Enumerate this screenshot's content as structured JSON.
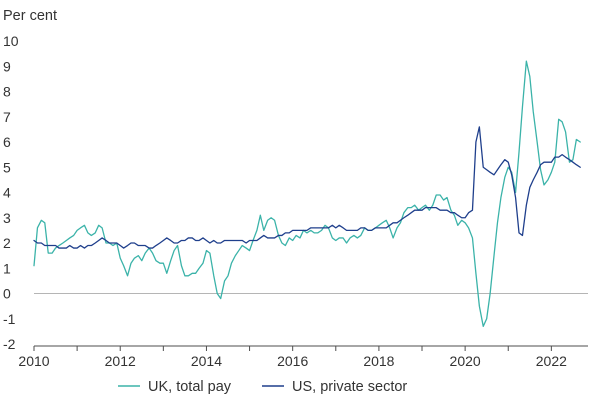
{
  "chart_data": {
    "type": "line",
    "title": "",
    "ylabel": "Per cent",
    "xlabel": "",
    "xlim": [
      2010,
      2022.85
    ],
    "ylim": [
      -2,
      10
    ],
    "x_ticks": [
      2010,
      2012,
      2014,
      2016,
      2018,
      2020,
      2022
    ],
    "y_ticks": [
      -2,
      -1,
      0,
      1,
      2,
      3,
      4,
      5,
      6,
      7,
      8,
      9,
      10
    ],
    "grid": false,
    "legend_position": "bottom",
    "series": [
      {
        "name": "UK, total pay",
        "color": "#3bb3a9",
        "points": [
          [
            2010.0,
            1.1
          ],
          [
            2010.08,
            2.6
          ],
          [
            2010.17,
            2.9
          ],
          [
            2010.25,
            2.8
          ],
          [
            2010.33,
            1.6
          ],
          [
            2010.42,
            1.6
          ],
          [
            2010.5,
            1.8
          ],
          [
            2010.58,
            1.9
          ],
          [
            2010.67,
            2.0
          ],
          [
            2010.75,
            2.1
          ],
          [
            2010.83,
            2.2
          ],
          [
            2010.92,
            2.3
          ],
          [
            2011.0,
            2.5
          ],
          [
            2011.08,
            2.6
          ],
          [
            2011.17,
            2.7
          ],
          [
            2011.25,
            2.4
          ],
          [
            2011.33,
            2.3
          ],
          [
            2011.42,
            2.4
          ],
          [
            2011.5,
            2.7
          ],
          [
            2011.58,
            2.6
          ],
          [
            2011.67,
            2.0
          ],
          [
            2011.75,
            2.0
          ],
          [
            2011.83,
            1.9
          ],
          [
            2011.92,
            2.0
          ],
          [
            2012.0,
            1.4
          ],
          [
            2012.08,
            1.1
          ],
          [
            2012.17,
            0.7
          ],
          [
            2012.25,
            1.2
          ],
          [
            2012.33,
            1.4
          ],
          [
            2012.42,
            1.5
          ],
          [
            2012.5,
            1.3
          ],
          [
            2012.58,
            1.6
          ],
          [
            2012.67,
            1.8
          ],
          [
            2012.75,
            1.6
          ],
          [
            2012.83,
            1.3
          ],
          [
            2012.92,
            1.2
          ],
          [
            2013.0,
            1.2
          ],
          [
            2013.08,
            0.8
          ],
          [
            2013.17,
            1.3
          ],
          [
            2013.25,
            1.7
          ],
          [
            2013.33,
            1.9
          ],
          [
            2013.42,
            1.1
          ],
          [
            2013.5,
            0.7
          ],
          [
            2013.58,
            0.7
          ],
          [
            2013.67,
            0.8
          ],
          [
            2013.75,
            0.8
          ],
          [
            2013.83,
            1.0
          ],
          [
            2013.92,
            1.2
          ],
          [
            2014.0,
            1.7
          ],
          [
            2014.08,
            1.6
          ],
          [
            2014.17,
            0.7
          ],
          [
            2014.25,
            0.0
          ],
          [
            2014.33,
            -0.2
          ],
          [
            2014.42,
            0.5
          ],
          [
            2014.5,
            0.7
          ],
          [
            2014.58,
            1.2
          ],
          [
            2014.67,
            1.5
          ],
          [
            2014.75,
            1.7
          ],
          [
            2014.83,
            1.9
          ],
          [
            2014.92,
            1.8
          ],
          [
            2015.0,
            1.7
          ],
          [
            2015.08,
            2.1
          ],
          [
            2015.17,
            2.5
          ],
          [
            2015.25,
            3.1
          ],
          [
            2015.33,
            2.5
          ],
          [
            2015.42,
            2.9
          ],
          [
            2015.5,
            3.0
          ],
          [
            2015.58,
            2.9
          ],
          [
            2015.67,
            2.3
          ],
          [
            2015.75,
            2.0
          ],
          [
            2015.83,
            1.9
          ],
          [
            2015.92,
            2.2
          ],
          [
            2016.0,
            2.1
          ],
          [
            2016.08,
            2.3
          ],
          [
            2016.17,
            2.2
          ],
          [
            2016.25,
            2.5
          ],
          [
            2016.33,
            2.4
          ],
          [
            2016.42,
            2.5
          ],
          [
            2016.5,
            2.4
          ],
          [
            2016.58,
            2.4
          ],
          [
            2016.67,
            2.5
          ],
          [
            2016.75,
            2.7
          ],
          [
            2016.83,
            2.6
          ],
          [
            2016.92,
            2.2
          ],
          [
            2017.0,
            2.1
          ],
          [
            2017.08,
            2.2
          ],
          [
            2017.17,
            2.2
          ],
          [
            2017.25,
            2.0
          ],
          [
            2017.33,
            2.2
          ],
          [
            2017.42,
            2.3
          ],
          [
            2017.5,
            2.2
          ],
          [
            2017.58,
            2.3
          ],
          [
            2017.67,
            2.6
          ],
          [
            2017.75,
            2.5
          ],
          [
            2017.83,
            2.5
          ],
          [
            2017.92,
            2.6
          ],
          [
            2018.0,
            2.7
          ],
          [
            2018.08,
            2.8
          ],
          [
            2018.17,
            2.9
          ],
          [
            2018.25,
            2.6
          ],
          [
            2018.33,
            2.2
          ],
          [
            2018.42,
            2.6
          ],
          [
            2018.5,
            2.8
          ],
          [
            2018.58,
            3.2
          ],
          [
            2018.67,
            3.4
          ],
          [
            2018.75,
            3.4
          ],
          [
            2018.83,
            3.5
          ],
          [
            2018.92,
            3.3
          ],
          [
            2019.0,
            3.4
          ],
          [
            2019.08,
            3.5
          ],
          [
            2019.17,
            3.3
          ],
          [
            2019.25,
            3.5
          ],
          [
            2019.33,
            3.9
          ],
          [
            2019.42,
            3.9
          ],
          [
            2019.5,
            3.7
          ],
          [
            2019.58,
            3.8
          ],
          [
            2019.67,
            3.3
          ],
          [
            2019.75,
            3.1
          ],
          [
            2019.83,
            2.7
          ],
          [
            2019.92,
            2.9
          ],
          [
            2020.0,
            2.8
          ],
          [
            2020.08,
            2.6
          ],
          [
            2020.17,
            2.2
          ],
          [
            2020.25,
            0.8
          ],
          [
            2020.33,
            -0.5
          ],
          [
            2020.42,
            -1.3
          ],
          [
            2020.5,
            -1.0
          ],
          [
            2020.58,
            0.0
          ],
          [
            2020.67,
            1.5
          ],
          [
            2020.75,
            2.8
          ],
          [
            2020.83,
            3.8
          ],
          [
            2020.92,
            4.6
          ],
          [
            2021.0,
            5.0
          ],
          [
            2021.08,
            4.8
          ],
          [
            2021.17,
            4.0
          ],
          [
            2021.25,
            5.6
          ],
          [
            2021.33,
            7.4
          ],
          [
            2021.42,
            9.2
          ],
          [
            2021.5,
            8.6
          ],
          [
            2021.58,
            7.2
          ],
          [
            2021.67,
            6.0
          ],
          [
            2021.75,
            4.9
          ],
          [
            2021.83,
            4.3
          ],
          [
            2021.92,
            4.5
          ],
          [
            2022.0,
            4.8
          ],
          [
            2022.08,
            5.2
          ],
          [
            2022.17,
            6.9
          ],
          [
            2022.25,
            6.8
          ],
          [
            2022.33,
            6.4
          ],
          [
            2022.42,
            5.2
          ],
          [
            2022.5,
            5.3
          ],
          [
            2022.58,
            6.1
          ],
          [
            2022.67,
            6.0
          ]
        ]
      },
      {
        "name": "US, private sector",
        "color": "#1f3f8c",
        "points": [
          [
            2010.0,
            2.1
          ],
          [
            2010.08,
            2.0
          ],
          [
            2010.17,
            2.0
          ],
          [
            2010.25,
            1.9
          ],
          [
            2010.33,
            1.9
          ],
          [
            2010.42,
            1.9
          ],
          [
            2010.5,
            1.9
          ],
          [
            2010.58,
            1.8
          ],
          [
            2010.67,
            1.8
          ],
          [
            2010.75,
            1.8
          ],
          [
            2010.83,
            1.9
          ],
          [
            2010.92,
            1.8
          ],
          [
            2011.0,
            1.8
          ],
          [
            2011.08,
            1.9
          ],
          [
            2011.17,
            1.8
          ],
          [
            2011.25,
            1.9
          ],
          [
            2011.33,
            1.9
          ],
          [
            2011.42,
            2.0
          ],
          [
            2011.5,
            2.1
          ],
          [
            2011.58,
            2.2
          ],
          [
            2011.67,
            2.1
          ],
          [
            2011.75,
            2.0
          ],
          [
            2011.83,
            2.0
          ],
          [
            2011.92,
            2.0
          ],
          [
            2012.0,
            1.9
          ],
          [
            2012.08,
            1.8
          ],
          [
            2012.17,
            1.9
          ],
          [
            2012.25,
            2.0
          ],
          [
            2012.33,
            2.0
          ],
          [
            2012.42,
            1.9
          ],
          [
            2012.5,
            1.9
          ],
          [
            2012.58,
            1.9
          ],
          [
            2012.67,
            1.8
          ],
          [
            2012.75,
            1.8
          ],
          [
            2012.83,
            1.9
          ],
          [
            2012.92,
            2.0
          ],
          [
            2013.0,
            2.1
          ],
          [
            2013.08,
            2.2
          ],
          [
            2013.17,
            2.1
          ],
          [
            2013.25,
            2.0
          ],
          [
            2013.33,
            2.0
          ],
          [
            2013.42,
            2.1
          ],
          [
            2013.5,
            2.1
          ],
          [
            2013.58,
            2.2
          ],
          [
            2013.67,
            2.2
          ],
          [
            2013.75,
            2.1
          ],
          [
            2013.83,
            2.1
          ],
          [
            2013.92,
            2.2
          ],
          [
            2014.0,
            2.1
          ],
          [
            2014.08,
            2.0
          ],
          [
            2014.17,
            2.1
          ],
          [
            2014.25,
            2.0
          ],
          [
            2014.33,
            2.0
          ],
          [
            2014.42,
            2.1
          ],
          [
            2014.5,
            2.1
          ],
          [
            2014.58,
            2.1
          ],
          [
            2014.67,
            2.1
          ],
          [
            2014.75,
            2.1
          ],
          [
            2014.83,
            2.1
          ],
          [
            2014.92,
            2.0
          ],
          [
            2015.0,
            2.1
          ],
          [
            2015.08,
            2.1
          ],
          [
            2015.17,
            2.1
          ],
          [
            2015.25,
            2.2
          ],
          [
            2015.33,
            2.3
          ],
          [
            2015.42,
            2.2
          ],
          [
            2015.5,
            2.2
          ],
          [
            2015.58,
            2.2
          ],
          [
            2015.67,
            2.3
          ],
          [
            2015.75,
            2.3
          ],
          [
            2015.83,
            2.4
          ],
          [
            2015.92,
            2.4
          ],
          [
            2016.0,
            2.5
          ],
          [
            2016.08,
            2.5
          ],
          [
            2016.17,
            2.5
          ],
          [
            2016.25,
            2.5
          ],
          [
            2016.33,
            2.5
          ],
          [
            2016.42,
            2.6
          ],
          [
            2016.5,
            2.6
          ],
          [
            2016.58,
            2.6
          ],
          [
            2016.67,
            2.6
          ],
          [
            2016.75,
            2.6
          ],
          [
            2016.83,
            2.6
          ],
          [
            2016.92,
            2.7
          ],
          [
            2017.0,
            2.6
          ],
          [
            2017.08,
            2.7
          ],
          [
            2017.17,
            2.6
          ],
          [
            2017.25,
            2.5
          ],
          [
            2017.33,
            2.5
          ],
          [
            2017.42,
            2.5
          ],
          [
            2017.5,
            2.5
          ],
          [
            2017.58,
            2.6
          ],
          [
            2017.67,
            2.6
          ],
          [
            2017.75,
            2.5
          ],
          [
            2017.83,
            2.5
          ],
          [
            2017.92,
            2.6
          ],
          [
            2018.0,
            2.6
          ],
          [
            2018.08,
            2.6
          ],
          [
            2018.17,
            2.6
          ],
          [
            2018.25,
            2.7
          ],
          [
            2018.33,
            2.8
          ],
          [
            2018.42,
            2.8
          ],
          [
            2018.5,
            2.9
          ],
          [
            2018.58,
            3.0
          ],
          [
            2018.67,
            3.1
          ],
          [
            2018.75,
            3.2
          ],
          [
            2018.83,
            3.3
          ],
          [
            2018.92,
            3.3
          ],
          [
            2019.0,
            3.3
          ],
          [
            2019.08,
            3.4
          ],
          [
            2019.17,
            3.4
          ],
          [
            2019.25,
            3.4
          ],
          [
            2019.33,
            3.4
          ],
          [
            2019.42,
            3.3
          ],
          [
            2019.5,
            3.3
          ],
          [
            2019.58,
            3.3
          ],
          [
            2019.67,
            3.2
          ],
          [
            2019.75,
            3.2
          ],
          [
            2019.83,
            3.1
          ],
          [
            2019.92,
            3.0
          ],
          [
            2020.0,
            3.0
          ],
          [
            2020.08,
            3.2
          ],
          [
            2020.17,
            3.3
          ],
          [
            2020.25,
            6.0
          ],
          [
            2020.33,
            6.6
          ],
          [
            2020.42,
            5.0
          ],
          [
            2020.5,
            4.9
          ],
          [
            2020.58,
            4.8
          ],
          [
            2020.67,
            4.7
          ],
          [
            2020.75,
            4.9
          ],
          [
            2020.83,
            5.1
          ],
          [
            2020.92,
            5.3
          ],
          [
            2021.0,
            5.2
          ],
          [
            2021.08,
            4.7
          ],
          [
            2021.17,
            3.8
          ],
          [
            2021.25,
            2.4
          ],
          [
            2021.33,
            2.3
          ],
          [
            2021.42,
            3.5
          ],
          [
            2021.5,
            4.2
          ],
          [
            2021.58,
            4.5
          ],
          [
            2021.67,
            4.8
          ],
          [
            2021.75,
            5.1
          ],
          [
            2021.83,
            5.2
          ],
          [
            2021.92,
            5.2
          ],
          [
            2022.0,
            5.2
          ],
          [
            2022.08,
            5.4
          ],
          [
            2022.17,
            5.4
          ],
          [
            2022.25,
            5.5
          ],
          [
            2022.33,
            5.4
          ],
          [
            2022.42,
            5.3
          ],
          [
            2022.5,
            5.2
          ],
          [
            2022.58,
            5.1
          ],
          [
            2022.67,
            5.0
          ]
        ]
      }
    ]
  }
}
